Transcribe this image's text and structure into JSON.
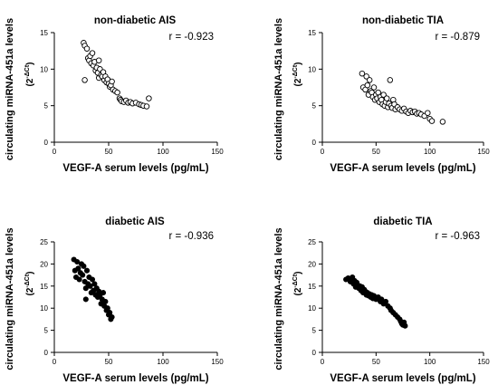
{
  "chart_data": [
    {
      "type": "scatter",
      "title": "non-diabetic AIS",
      "annotation": "r = -0.923",
      "xlabel": "VEGF-A serum levels (pg/mL)",
      "ylabel": "circulating miRNA-451a levels",
      "ylabel_unit_base": "(2",
      "ylabel_unit_exp": "-ΔCt",
      "ylabel_unit_close": ")",
      "xlim": [
        0,
        150
      ],
      "ylim": [
        0,
        15
      ],
      "xticks": [
        "0",
        "50",
        "100",
        "150"
      ],
      "yticks": [
        "0",
        "5",
        "10",
        "15"
      ],
      "marker": "open-circle",
      "points": [
        [
          27,
          13.6
        ],
        [
          28,
          13.2
        ],
        [
          28,
          8.5
        ],
        [
          30,
          12.8
        ],
        [
          31,
          11.5
        ],
        [
          32,
          11.2
        ],
        [
          33,
          11.8
        ],
        [
          34,
          10.8
        ],
        [
          35,
          12.2
        ],
        [
          36,
          10.5
        ],
        [
          37,
          11.0
        ],
        [
          38,
          9.8
        ],
        [
          39,
          10.2
        ],
        [
          40,
          9.5
        ],
        [
          41,
          11.2
        ],
        [
          41,
          8.8
        ],
        [
          42,
          10.0
        ],
        [
          43,
          9.2
        ],
        [
          44,
          9.0
        ],
        [
          45,
          9.6
        ],
        [
          46,
          8.5
        ],
        [
          47,
          9.0
        ],
        [
          48,
          8.2
        ],
        [
          49,
          8.6
        ],
        [
          50,
          8.0
        ],
        [
          51,
          7.6
        ],
        [
          52,
          7.8
        ],
        [
          53,
          8.3
        ],
        [
          54,
          7.2
        ],
        [
          56,
          7.0
        ],
        [
          58,
          6.8
        ],
        [
          60,
          6.0
        ],
        [
          61,
          5.8
        ],
        [
          62,
          5.6
        ],
        [
          64,
          5.5
        ],
        [
          66,
          5.7
        ],
        [
          68,
          5.4
        ],
        [
          70,
          5.5
        ],
        [
          72,
          5.3
        ],
        [
          75,
          5.4
        ],
        [
          78,
          5.2
        ],
        [
          80,
          5.1
        ],
        [
          82,
          5.0
        ],
        [
          85,
          4.9
        ],
        [
          87,
          6.0
        ]
      ]
    },
    {
      "type": "scatter",
      "title": "non-diabetic TIA",
      "annotation": "r = -0.879",
      "xlabel": "VEGF-A serum levels (pg/mL)",
      "ylabel": "circulating miRNA-451a levels",
      "ylabel_unit_base": "(2",
      "ylabel_unit_exp": "-ΔCt",
      "ylabel_unit_close": ")",
      "xlim": [
        0,
        150
      ],
      "ylim": [
        0,
        15
      ],
      "xticks": [
        "0",
        "50",
        "100",
        "150"
      ],
      "yticks": [
        "0",
        "5",
        "10",
        "15"
      ],
      "marker": "open-circle",
      "points": [
        [
          37,
          9.4
        ],
        [
          38,
          7.5
        ],
        [
          40,
          7.2
        ],
        [
          41,
          9.0
        ],
        [
          42,
          7.8
        ],
        [
          43,
          6.5
        ],
        [
          44,
          8.5
        ],
        [
          45,
          7.0
        ],
        [
          46,
          6.8
        ],
        [
          47,
          6.2
        ],
        [
          48,
          7.5
        ],
        [
          49,
          5.8
        ],
        [
          50,
          6.5
        ],
        [
          51,
          6.0
        ],
        [
          52,
          6.8
        ],
        [
          53,
          5.5
        ],
        [
          54,
          6.2
        ],
        [
          55,
          5.8
        ],
        [
          56,
          5.2
        ],
        [
          57,
          6.5
        ],
        [
          58,
          5.0
        ],
        [
          59,
          5.5
        ],
        [
          60,
          6.0
        ],
        [
          61,
          4.8
        ],
        [
          62,
          5.3
        ],
        [
          63,
          8.5
        ],
        [
          64,
          5.0
        ],
        [
          65,
          4.7
        ],
        [
          66,
          5.8
        ],
        [
          67,
          5.2
        ],
        [
          68,
          4.5
        ],
        [
          70,
          4.8
        ],
        [
          72,
          4.5
        ],
        [
          74,
          4.3
        ],
        [
          76,
          4.6
        ],
        [
          78,
          4.2
        ],
        [
          80,
          4.0
        ],
        [
          82,
          4.3
        ],
        [
          84,
          4.1
        ],
        [
          86,
          4.2
        ],
        [
          88,
          3.9
        ],
        [
          90,
          4.0
        ],
        [
          92,
          3.8
        ],
        [
          95,
          3.6
        ],
        [
          98,
          4.0
        ],
        [
          100,
          3.2
        ],
        [
          102,
          2.9
        ],
        [
          112,
          2.8
        ]
      ]
    },
    {
      "type": "scatter",
      "title": "diabetic AIS",
      "annotation": "r = -0.936",
      "xlabel": "VEGF-A serum levels (pg/mL)",
      "ylabel": "circulating miRNA-451a levels",
      "ylabel_unit_base": "(2",
      "ylabel_unit_exp": "-ΔCt",
      "ylabel_unit_close": ")",
      "xlim": [
        0,
        150
      ],
      "ylim": [
        0,
        25
      ],
      "xticks": [
        "0",
        "50",
        "100",
        "150"
      ],
      "yticks": [
        "0",
        "5",
        "10",
        "15",
        "20",
        "25"
      ],
      "marker": "filled-circle",
      "points": [
        [
          18,
          21.0
        ],
        [
          19,
          18.5
        ],
        [
          20,
          17.0
        ],
        [
          21,
          20.5
        ],
        [
          22,
          19.0
        ],
        [
          23,
          16.5
        ],
        [
          24,
          18.0
        ],
        [
          25,
          20.0
        ],
        [
          26,
          17.5
        ],
        [
          27,
          19.5
        ],
        [
          28,
          16.0
        ],
        [
          29,
          14.5
        ],
        [
          30,
          18.5
        ],
        [
          31,
          15.5
        ],
        [
          32,
          17.0
        ],
        [
          33,
          15.0
        ],
        [
          34,
          13.5
        ],
        [
          35,
          16.5
        ],
        [
          36,
          14.0
        ],
        [
          37,
          15.5
        ],
        [
          38,
          13.0
        ],
        [
          39,
          14.5
        ],
        [
          40,
          12.5
        ],
        [
          42,
          13.0
        ],
        [
          43,
          11.0
        ],
        [
          44,
          12.0
        ],
        [
          45,
          13.5
        ],
        [
          46,
          10.5
        ],
        [
          47,
          11.5
        ],
        [
          48,
          9.5
        ],
        [
          49,
          10.0
        ],
        [
          50,
          8.5
        ],
        [
          51,
          9.0
        ],
        [
          52,
          7.5
        ],
        [
          53,
          8.0
        ],
        [
          29,
          12.0
        ],
        [
          41,
          13.8
        ]
      ]
    },
    {
      "type": "scatter",
      "title": "diabetic TIA",
      "annotation": "r = -0.963",
      "xlabel": "VEGF-A serum levels (pg/mL)",
      "ylabel": "circulating miRNA-451a levels",
      "ylabel_unit_base": "(2",
      "ylabel_unit_exp": "-ΔCt",
      "ylabel_unit_close": ")",
      "xlim": [
        0,
        150
      ],
      "ylim": [
        0,
        25
      ],
      "xticks": [
        "0",
        "50",
        "100",
        "150"
      ],
      "yticks": [
        "0",
        "5",
        "10",
        "15",
        "20",
        "25"
      ],
      "marker": "filled-circle",
      "points": [
        [
          22,
          16.5
        ],
        [
          24,
          16.8
        ],
        [
          26,
          16.0
        ],
        [
          28,
          17.0
        ],
        [
          29,
          15.5
        ],
        [
          30,
          16.2
        ],
        [
          31,
          14.8
        ],
        [
          32,
          15.8
        ],
        [
          33,
          15.2
        ],
        [
          34,
          14.5
        ],
        [
          35,
          15.0
        ],
        [
          36,
          14.0
        ],
        [
          37,
          14.8
        ],
        [
          38,
          13.5
        ],
        [
          39,
          14.2
        ],
        [
          40,
          13.8
        ],
        [
          41,
          13.0
        ],
        [
          42,
          13.5
        ],
        [
          43,
          12.8
        ],
        [
          44,
          13.2
        ],
        [
          45,
          12.5
        ],
        [
          46,
          13.0
        ],
        [
          47,
          12.2
        ],
        [
          48,
          12.8
        ],
        [
          50,
          12.0
        ],
        [
          52,
          12.5
        ],
        [
          54,
          11.5
        ],
        [
          55,
          12.0
        ],
        [
          57,
          11.0
        ],
        [
          59,
          11.5
        ],
        [
          61,
          10.5
        ],
        [
          63,
          10.0
        ],
        [
          64,
          9.5
        ],
        [
          66,
          9.0
        ],
        [
          68,
          8.5
        ],
        [
          70,
          8.0
        ],
        [
          72,
          7.5
        ],
        [
          73,
          7.0
        ],
        [
          74,
          6.5
        ],
        [
          75,
          6.2
        ],
        [
          76,
          6.8
        ],
        [
          77,
          6.0
        ]
      ]
    }
  ]
}
